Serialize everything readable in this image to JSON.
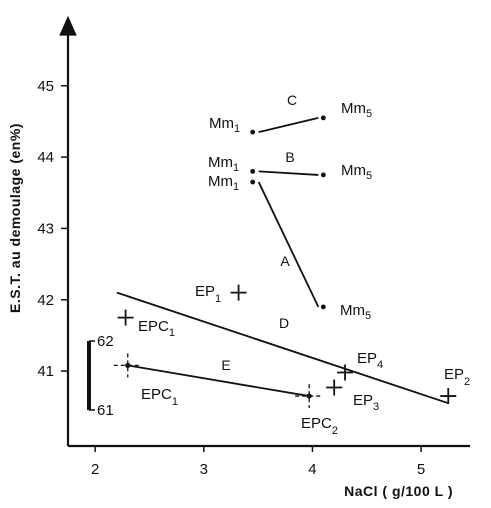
{
  "chart_data": {
    "type": "scatter",
    "title": "",
    "xlabel": "NaCl ( g/100 L )",
    "ylabel": "E.S.T.  au demoulage (en%)",
    "xlim": [
      1.75,
      5.45
    ],
    "ylim": [
      39.95,
      45.95
    ],
    "x_ticks": [
      "2",
      "3",
      "4",
      "5"
    ],
    "y_ticks": [
      "41",
      "42",
      "43",
      "44",
      "45"
    ],
    "x_tick_values": [
      2,
      3,
      4,
      5
    ],
    "y_tick_values": [
      41,
      42,
      43,
      44,
      45
    ],
    "grid": false,
    "legend": "none",
    "groups": [
      {
        "name": "C",
        "points": [
          {
            "label": "Mm1",
            "x": 3.45,
            "y": 44.35
          },
          {
            "label": "Mm5",
            "x": 4.1,
            "y": 44.55
          }
        ]
      },
      {
        "name": "B",
        "points": [
          {
            "label": "Mm1",
            "x": 3.45,
            "y": 43.8
          },
          {
            "label": "Mm5",
            "x": 4.1,
            "y": 43.75
          }
        ]
      },
      {
        "name": "A",
        "points": [
          {
            "label": "Mm1",
            "x": 3.45,
            "y": 43.65
          },
          {
            "label": "Mm5",
            "x": 4.1,
            "y": 41.9
          }
        ]
      },
      {
        "name": "D",
        "points": [
          {
            "label": "",
            "x": 2.2,
            "y": 42.1
          },
          {
            "label": "",
            "x": 5.25,
            "y": 40.55
          }
        ]
      },
      {
        "name": "E",
        "points": [
          {
            "label": "EPC1",
            "x": 2.3,
            "y": 41.08
          },
          {
            "label": "EPC2",
            "x": 3.97,
            "y": 40.65
          }
        ]
      }
    ],
    "markers": [
      {
        "label": "EP1",
        "x": 3.32,
        "y": 42.1
      },
      {
        "label": "EPC1",
        "x": 2.28,
        "y": 41.75
      },
      {
        "label": "EP4",
        "x": 4.3,
        "y": 40.98
      },
      {
        "label": "EP3",
        "x": 4.2,
        "y": 40.77
      },
      {
        "label": "EP2",
        "x": 5.25,
        "y": 40.65
      }
    ],
    "range_bar": {
      "top_label": "62",
      "bottom_label": "61"
    }
  },
  "labels": {
    "mm1_c": {
      "main": "Mm",
      "sub": "1"
    },
    "mm5_c": {
      "main": "Mm",
      "sub": "5"
    },
    "mm1_b": {
      "main": "Mm",
      "sub": "1"
    },
    "mm5_b": {
      "main": "Mm",
      "sub": "5"
    },
    "mm1_a": {
      "main": "Mm",
      "sub": "1"
    },
    "mm5_a": {
      "main": "Mm",
      "sub": "5"
    },
    "ep1": {
      "main": "EP",
      "sub": "1"
    },
    "epc1_upper": {
      "main": "EPC",
      "sub": "1"
    },
    "epc1_lower": {
      "main": "EPC",
      "sub": "1"
    },
    "ep4": {
      "main": "EP",
      "sub": "4"
    },
    "ep3": {
      "main": "EP",
      "sub": "3"
    },
    "ep2": {
      "main": "EP",
      "sub": "2"
    },
    "epc2": {
      "main": "EPC",
      "sub": "2"
    }
  },
  "group_letters": {
    "a": "A",
    "b": "B",
    "c": "C",
    "d": "D",
    "e": "E"
  }
}
